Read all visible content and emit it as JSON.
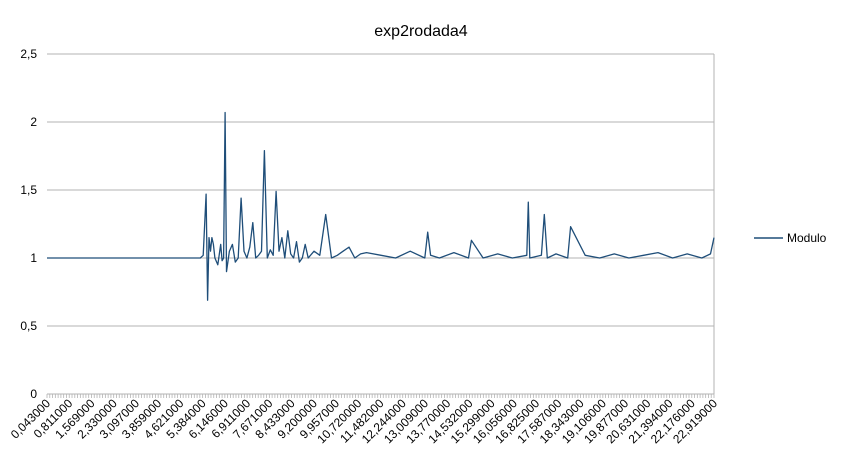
{
  "chart_data": {
    "type": "line",
    "title": "exp2rodada4",
    "xlabel": "",
    "ylabel": "",
    "ylim": [
      0,
      2.5
    ],
    "y_ticks": [
      "0",
      "0,5",
      "1",
      "1,5",
      "2",
      "2,5"
    ],
    "grid": true,
    "legend_position": "right",
    "x_tick_labels": [
      "0,043000",
      "0,811000",
      "1,569000",
      "2,330000",
      "3,097000",
      "3,859000",
      "4,621000",
      "5,384000",
      "6,146000",
      "6,911000",
      "7,671000",
      "8,433000",
      "9,200000",
      "9,957000",
      "10,720000",
      "11,482000",
      "12,244000",
      "13,009000",
      "13,770000",
      "14,532000",
      "15,299000",
      "16,056000",
      "16,825000",
      "17,587000",
      "18,343000",
      "19,106000",
      "19,877000",
      "20,631000",
      "21,394000",
      "22,176000",
      "22,919000"
    ],
    "series": [
      {
        "name": "Modulo",
        "color": "#1f4e79",
        "x": [
          0.043,
          1.0,
          2.0,
          3.0,
          4.0,
          5.0,
          5.3,
          5.4,
          5.5,
          5.55,
          5.6,
          5.65,
          5.7,
          5.75,
          5.8,
          5.9,
          6.0,
          6.05,
          6.1,
          6.15,
          6.2,
          6.3,
          6.4,
          6.5,
          6.6,
          6.7,
          6.8,
          6.9,
          7.0,
          7.1,
          7.2,
          7.3,
          7.4,
          7.5,
          7.6,
          7.7,
          7.8,
          7.9,
          8.0,
          8.1,
          8.2,
          8.3,
          8.4,
          8.5,
          8.6,
          8.7,
          8.8,
          8.9,
          9.0,
          9.2,
          9.4,
          9.6,
          9.8,
          10.0,
          10.2,
          10.4,
          10.6,
          10.8,
          11.0,
          11.5,
          12.0,
          12.5,
          13.0,
          13.1,
          13.2,
          13.5,
          14.0,
          14.5,
          14.6,
          15.0,
          15.5,
          16.0,
          16.5,
          16.55,
          16.6,
          17.0,
          17.1,
          17.2,
          17.5,
          17.9,
          18.0,
          18.5,
          19.0,
          19.5,
          20.0,
          20.5,
          21.0,
          21.5,
          22.0,
          22.5,
          22.8,
          22.919
        ],
        "values": [
          1.0,
          1.0,
          1.0,
          1.0,
          1.0,
          1.0,
          1.0,
          1.02,
          1.47,
          0.69,
          1.15,
          1.05,
          1.15,
          1.1,
          1.0,
          0.95,
          1.1,
          0.98,
          1.0,
          2.07,
          0.9,
          1.05,
          1.1,
          0.97,
          1.0,
          1.44,
          1.05,
          1.0,
          1.08,
          1.26,
          1.0,
          1.02,
          1.05,
          1.79,
          1.0,
          1.06,
          1.02,
          1.49,
          1.05,
          1.15,
          1.0,
          1.2,
          1.03,
          1.0,
          1.12,
          0.97,
          1.0,
          1.1,
          1.0,
          1.05,
          1.02,
          1.32,
          1.0,
          1.02,
          1.05,
          1.08,
          1.0,
          1.03,
          1.04,
          1.02,
          1.0,
          1.05,
          1.0,
          1.19,
          1.02,
          1.0,
          1.04,
          1.0,
          1.13,
          1.0,
          1.03,
          1.0,
          1.02,
          1.41,
          1.0,
          1.02,
          1.32,
          1.0,
          1.03,
          1.0,
          1.23,
          1.02,
          1.0,
          1.03,
          1.0,
          1.02,
          1.04,
          1.0,
          1.03,
          1.0,
          1.03,
          1.15
        ]
      }
    ]
  }
}
